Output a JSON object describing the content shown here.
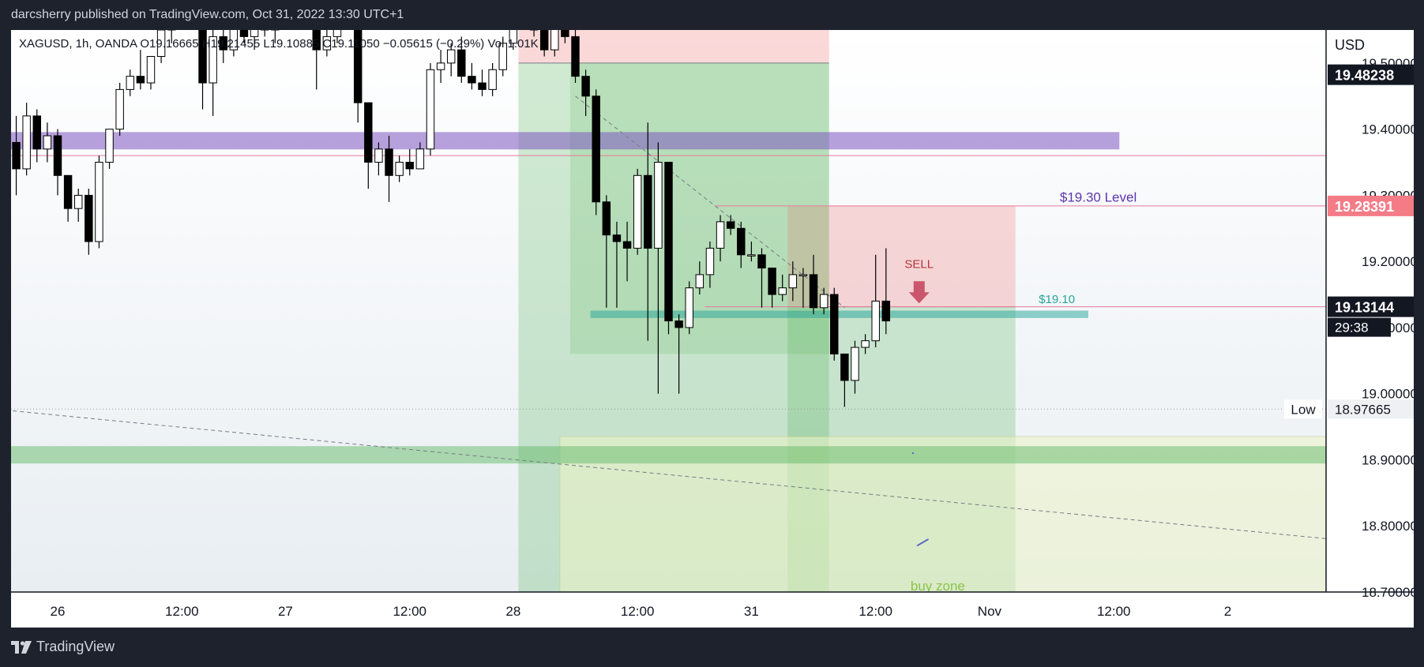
{
  "header": {
    "published_by": "darcsherry published on TradingView.com, Oct 31, 2022 13:30 UTC+1"
  },
  "symbol_line": "XAGUSD, 1h, OANDA  O19.16665  H19.21455  L19.10885  C19.11050  −0.05615 (−0.29%)  Vol 1.01K",
  "currency": "USD",
  "footer": {
    "brand": "TradingView",
    "brand_icon": "tradingview-logo-icon"
  },
  "colors": {
    "bull": "#ffffff",
    "bear": "#000000",
    "wick": "#000000",
    "purple_zone": "#7e57c2",
    "green_zone": "#4caf50",
    "red_zone": "#f28b8b",
    "price_tag_black": "#131722",
    "price_tag_red": "#f7525f",
    "sell": "#b8343f",
    "teal": "#26a69a"
  },
  "chart_data": {
    "type": "candlestick",
    "y_range": [
      18.7,
      19.55
    ],
    "y_ticks": [
      "19.50000",
      "19.40000",
      "19.30000",
      "19.20000",
      "19.10000",
      "19.00000",
      "18.90000",
      "18.80000",
      "18.70000"
    ],
    "y_tick_values": [
      19.5,
      19.4,
      19.3,
      19.2,
      19.1,
      19.0,
      18.9,
      18.8,
      18.7
    ],
    "x_ticks": [
      "26",
      "12:00",
      "27",
      "12:00",
      "28",
      "12:00",
      "31",
      "12:00",
      "Nov",
      "12:00",
      "2"
    ],
    "x_tick_bars": [
      4,
      16,
      26,
      38,
      48,
      60,
      71,
      83,
      94,
      106,
      117
    ],
    "bars_visible": 127,
    "candles": [
      {
        "i": 0,
        "o": 19.38,
        "h": 19.42,
        "l": 19.3,
        "c": 19.34
      },
      {
        "i": 1,
        "o": 19.34,
        "h": 19.44,
        "l": 19.33,
        "c": 19.42
      },
      {
        "i": 2,
        "o": 19.42,
        "h": 19.43,
        "l": 19.35,
        "c": 19.37
      },
      {
        "i": 3,
        "o": 19.37,
        "h": 19.41,
        "l": 19.35,
        "c": 19.39
      },
      {
        "i": 4,
        "o": 19.39,
        "h": 19.4,
        "l": 19.3,
        "c": 19.33
      },
      {
        "i": 5,
        "o": 19.33,
        "h": 19.33,
        "l": 19.26,
        "c": 19.28
      },
      {
        "i": 6,
        "o": 19.28,
        "h": 19.31,
        "l": 19.26,
        "c": 19.3
      },
      {
        "i": 7,
        "o": 19.3,
        "h": 19.31,
        "l": 19.21,
        "c": 19.23
      },
      {
        "i": 8,
        "o": 19.23,
        "h": 19.36,
        "l": 19.22,
        "c": 19.35
      },
      {
        "i": 9,
        "o": 19.35,
        "h": 19.4,
        "l": 19.34,
        "c": 19.4
      },
      {
        "i": 10,
        "o": 19.4,
        "h": 19.47,
        "l": 19.39,
        "c": 19.46
      },
      {
        "i": 11,
        "o": 19.46,
        "h": 19.49,
        "l": 19.45,
        "c": 19.48
      },
      {
        "i": 12,
        "o": 19.48,
        "h": 19.52,
        "l": 19.46,
        "c": 19.47
      },
      {
        "i": 13,
        "o": 19.47,
        "h": 19.51,
        "l": 19.46,
        "c": 19.51
      },
      {
        "i": 14,
        "o": 19.51,
        "h": 19.58,
        "l": 19.5,
        "c": 19.55
      },
      {
        "i": 15,
        "o": 19.55,
        "h": 19.6,
        "l": 19.53,
        "c": 19.58
      },
      {
        "i": 16,
        "o": 19.58,
        "h": 19.62,
        "l": 19.55,
        "c": 19.57
      },
      {
        "i": 17,
        "o": 19.57,
        "h": 19.62,
        "l": 19.56,
        "c": 19.61
      },
      {
        "i": 18,
        "o": 19.61,
        "h": 19.61,
        "l": 19.43,
        "c": 19.47
      },
      {
        "i": 19,
        "o": 19.47,
        "h": 19.56,
        "l": 19.42,
        "c": 19.54
      },
      {
        "i": 20,
        "o": 19.54,
        "h": 19.57,
        "l": 19.5,
        "c": 19.52
      },
      {
        "i": 21,
        "o": 19.52,
        "h": 19.58,
        "l": 19.51,
        "c": 19.56
      },
      {
        "i": 22,
        "o": 19.56,
        "h": 19.58,
        "l": 19.53,
        "c": 19.54
      },
      {
        "i": 23,
        "o": 19.54,
        "h": 19.58,
        "l": 19.52,
        "c": 19.57
      },
      {
        "i": 24,
        "o": 19.57,
        "h": 19.59,
        "l": 19.54,
        "c": 19.55
      },
      {
        "i": 25,
        "o": 19.55,
        "h": 19.59,
        "l": 19.53,
        "c": 19.57
      },
      {
        "i": 26,
        "o": 19.57,
        "h": 19.6,
        "l": 19.55,
        "c": 19.56
      },
      {
        "i": 27,
        "o": 19.56,
        "h": 19.59,
        "l": 19.55,
        "c": 19.58
      },
      {
        "i": 28,
        "o": 19.58,
        "h": 19.61,
        "l": 19.56,
        "c": 19.57
      },
      {
        "i": 29,
        "o": 19.57,
        "h": 19.59,
        "l": 19.46,
        "c": 19.52
      },
      {
        "i": 30,
        "o": 19.52,
        "h": 19.55,
        "l": 19.51,
        "c": 19.54
      },
      {
        "i": 31,
        "o": 19.54,
        "h": 19.57,
        "l": 19.53,
        "c": 19.56
      },
      {
        "i": 32,
        "o": 19.56,
        "h": 19.59,
        "l": 19.55,
        "c": 19.58
      },
      {
        "i": 33,
        "o": 19.58,
        "h": 19.61,
        "l": 19.41,
        "c": 19.44
      },
      {
        "i": 34,
        "o": 19.44,
        "h": 19.44,
        "l": 19.31,
        "c": 19.35
      },
      {
        "i": 35,
        "o": 19.35,
        "h": 19.38,
        "l": 19.33,
        "c": 19.37
      },
      {
        "i": 36,
        "o": 19.37,
        "h": 19.39,
        "l": 19.29,
        "c": 19.33
      },
      {
        "i": 37,
        "o": 19.33,
        "h": 19.36,
        "l": 19.32,
        "c": 19.35
      },
      {
        "i": 38,
        "o": 19.35,
        "h": 19.37,
        "l": 19.33,
        "c": 19.34
      },
      {
        "i": 39,
        "o": 19.34,
        "h": 19.38,
        "l": 19.34,
        "c": 19.37
      },
      {
        "i": 40,
        "o": 19.37,
        "h": 19.5,
        "l": 19.36,
        "c": 19.49
      },
      {
        "i": 41,
        "o": 19.49,
        "h": 19.52,
        "l": 19.47,
        "c": 19.5
      },
      {
        "i": 42,
        "o": 19.5,
        "h": 19.53,
        "l": 19.48,
        "c": 19.52
      },
      {
        "i": 43,
        "o": 19.52,
        "h": 19.54,
        "l": 19.47,
        "c": 19.48
      },
      {
        "i": 44,
        "o": 19.48,
        "h": 19.5,
        "l": 19.46,
        "c": 19.47
      },
      {
        "i": 45,
        "o": 19.47,
        "h": 19.49,
        "l": 19.45,
        "c": 19.46
      },
      {
        "i": 46,
        "o": 19.46,
        "h": 19.5,
        "l": 19.45,
        "c": 19.49
      },
      {
        "i": 47,
        "o": 19.49,
        "h": 19.54,
        "l": 19.48,
        "c": 19.53
      },
      {
        "i": 48,
        "o": 19.53,
        "h": 19.6,
        "l": 19.52,
        "c": 19.58
      },
      {
        "i": 49,
        "o": 19.58,
        "h": 19.61,
        "l": 19.56,
        "c": 19.57
      },
      {
        "i": 50,
        "o": 19.57,
        "h": 19.59,
        "l": 19.54,
        "c": 19.55
      },
      {
        "i": 51,
        "o": 19.55,
        "h": 19.57,
        "l": 19.51,
        "c": 19.52
      },
      {
        "i": 52,
        "o": 19.52,
        "h": 19.57,
        "l": 19.51,
        "c": 19.56
      },
      {
        "i": 53,
        "o": 19.56,
        "h": 19.59,
        "l": 19.53,
        "c": 19.54
      },
      {
        "i": 54,
        "o": 19.54,
        "h": 19.55,
        "l": 19.47,
        "c": 19.48
      },
      {
        "i": 55,
        "o": 19.48,
        "h": 19.49,
        "l": 19.42,
        "c": 19.45
      },
      {
        "i": 56,
        "o": 19.45,
        "h": 19.46,
        "l": 19.27,
        "c": 19.29
      },
      {
        "i": 57,
        "o": 19.29,
        "h": 19.3,
        "l": 19.13,
        "c": 19.24
      },
      {
        "i": 58,
        "o": 19.24,
        "h": 19.26,
        "l": 19.13,
        "c": 19.23
      },
      {
        "i": 59,
        "o": 19.23,
        "h": 19.26,
        "l": 19.17,
        "c": 19.22
      },
      {
        "i": 60,
        "o": 19.22,
        "h": 19.34,
        "l": 19.21,
        "c": 19.33
      },
      {
        "i": 61,
        "o": 19.33,
        "h": 19.41,
        "l": 19.08,
        "c": 19.22
      },
      {
        "i": 62,
        "o": 19.22,
        "h": 19.38,
        "l": 19.0,
        "c": 19.35
      },
      {
        "i": 63,
        "o": 19.35,
        "h": 19.35,
        "l": 19.09,
        "c": 19.11
      },
      {
        "i": 64,
        "o": 19.11,
        "h": 19.12,
        "l": 19.0,
        "c": 19.1
      },
      {
        "i": 65,
        "o": 19.1,
        "h": 19.17,
        "l": 19.09,
        "c": 19.16
      },
      {
        "i": 66,
        "o": 19.16,
        "h": 19.2,
        "l": 19.15,
        "c": 19.18
      },
      {
        "i": 67,
        "o": 19.18,
        "h": 19.23,
        "l": 19.16,
        "c": 19.22
      },
      {
        "i": 68,
        "o": 19.22,
        "h": 19.27,
        "l": 19.2,
        "c": 19.26
      },
      {
        "i": 69,
        "o": 19.26,
        "h": 19.27,
        "l": 19.24,
        "c": 19.25
      },
      {
        "i": 70,
        "o": 19.25,
        "h": 19.26,
        "l": 19.19,
        "c": 19.21
      },
      {
        "i": 71,
        "o": 19.21,
        "h": 19.23,
        "l": 19.2,
        "c": 19.21
      },
      {
        "i": 72,
        "o": 19.21,
        "h": 19.22,
        "l": 19.13,
        "c": 19.19
      },
      {
        "i": 73,
        "o": 19.19,
        "h": 19.19,
        "l": 19.13,
        "c": 19.15
      },
      {
        "i": 74,
        "o": 19.15,
        "h": 19.18,
        "l": 19.14,
        "c": 19.16
      },
      {
        "i": 75,
        "o": 19.16,
        "h": 19.2,
        "l": 19.14,
        "c": 19.18
      },
      {
        "i": 76,
        "o": 19.18,
        "h": 19.19,
        "l": 19.13,
        "c": 19.18
      },
      {
        "i": 77,
        "o": 19.18,
        "h": 19.21,
        "l": 19.12,
        "c": 19.13
      },
      {
        "i": 78,
        "o": 19.13,
        "h": 19.16,
        "l": 19.12,
        "c": 19.15
      },
      {
        "i": 79,
        "o": 19.15,
        "h": 19.16,
        "l": 19.05,
        "c": 19.06
      },
      {
        "i": 80,
        "o": 19.06,
        "h": 19.06,
        "l": 18.98,
        "c": 19.02
      },
      {
        "i": 81,
        "o": 19.02,
        "h": 19.08,
        "l": 19.0,
        "c": 19.07
      },
      {
        "i": 82,
        "o": 19.07,
        "h": 19.09,
        "l": 19.06,
        "c": 19.08
      },
      {
        "i": 83,
        "o": 19.08,
        "h": 19.21,
        "l": 19.07,
        "c": 19.14
      },
      {
        "i": 84,
        "o": 19.14,
        "h": 19.22,
        "l": 19.09,
        "c": 19.11
      }
    ],
    "horizontal_lines": [
      {
        "y": 19.36,
        "color": "#e8799b"
      },
      {
        "y": 19.28391,
        "color": "#e8799b"
      },
      {
        "y": 19.13144,
        "color": "#e8799b"
      }
    ],
    "zones": [
      {
        "name": "purple-zone",
        "y1": 19.395,
        "y2": 19.37,
        "bar1": 0,
        "bar2": 107,
        "color": "#7e57c2",
        "opacity": 0.55
      },
      {
        "name": "green-support-zone",
        "y1": 18.92,
        "y2": 18.895,
        "bar1": -1,
        "bar2": 127,
        "color": "#66bb6a",
        "opacity": 0.5
      },
      {
        "name": "teal-level-zone",
        "y1": 19.125,
        "y2": 19.115,
        "bar1": 56,
        "bar2": 104,
        "color": "#26a69a",
        "opacity": 0.5
      }
    ],
    "position_boxes": [
      {
        "name": "short-position-1",
        "bar1": 49,
        "bar2": 78,
        "entry": 19.5,
        "stop": 19.58,
        "target": 18.7
      },
      {
        "name": "short-position-2",
        "bar1": 75,
        "bar2": 96,
        "entry": 19.13144,
        "stop": 19.28391,
        "target": 18.7
      }
    ],
    "buy_zone": {
      "bar1": 53,
      "bar2": 127,
      "y1": 18.935,
      "y2": 18.7,
      "label": "buy zone"
    },
    "annotations": {
      "level_1930": "$19.30 Level",
      "level_1910": "$19.10",
      "sell": "SELL",
      "low_label": "Low",
      "low_value": "18.97665",
      "low_price": 18.97665
    },
    "price_tags": [
      {
        "value": "19.48238",
        "price": 19.48238,
        "style": "black"
      },
      {
        "value": "19.28391",
        "price": 19.28391,
        "style": "red"
      },
      {
        "value": "19.13144",
        "price": 19.13144,
        "style": "black"
      }
    ],
    "countdown": "29:38",
    "trendlines": [
      {
        "name": "down-trendline-long",
        "bar1": -1,
        "y1": 18.975,
        "bar2": 127,
        "y2": 18.78
      },
      {
        "name": "down-trendline-short",
        "bar1": 54,
        "y1": 19.45,
        "bar2": 80,
        "y2": 19.13
      }
    ]
  }
}
